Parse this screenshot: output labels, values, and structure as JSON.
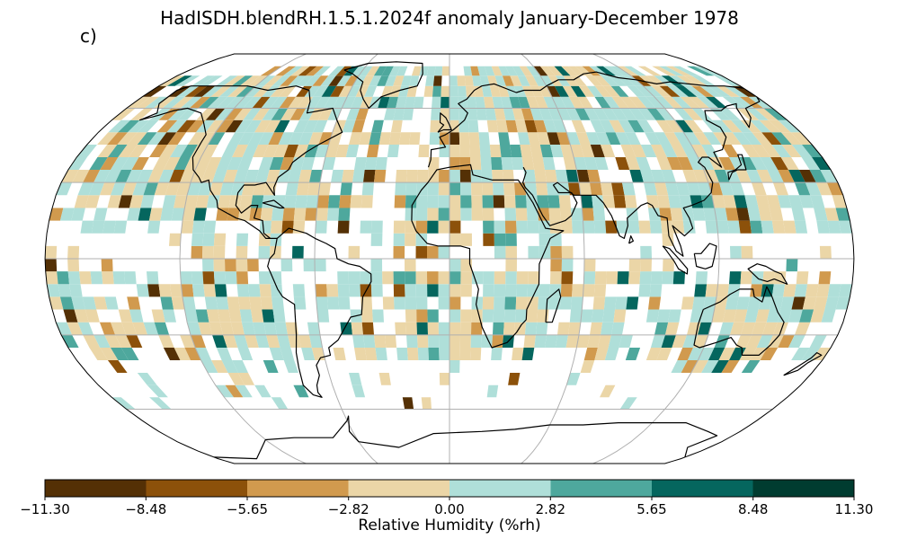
{
  "header": {
    "title": "HadISDH.blendRH.1.5.1.2024f anomaly January-December 1978",
    "panel_label": "c)"
  },
  "colorbar": {
    "label": "Relative Humidity (%rh)",
    "ticks": [
      "−11.30",
      "−8.48",
      "−5.65",
      "−2.82",
      "0.00",
      "2.82",
      "5.65",
      "8.48",
      "11.30"
    ],
    "tick_values": [
      -11.3,
      -8.48,
      -5.65,
      -2.82,
      0.0,
      2.82,
      5.65,
      8.48,
      11.3
    ],
    "colors": [
      "#543005",
      "#8c510a",
      "#d19a4e",
      "#ebd6a7",
      "#afdfd9",
      "#4ea89d",
      "#05665e",
      "#003c30"
    ]
  },
  "map": {
    "projection": "Robinson",
    "gridlines": true,
    "coastlines": true,
    "grid_color": "#b0b0b0",
    "ocean_color": "#ffffff",
    "missing_color": "#ffffff"
  }
}
